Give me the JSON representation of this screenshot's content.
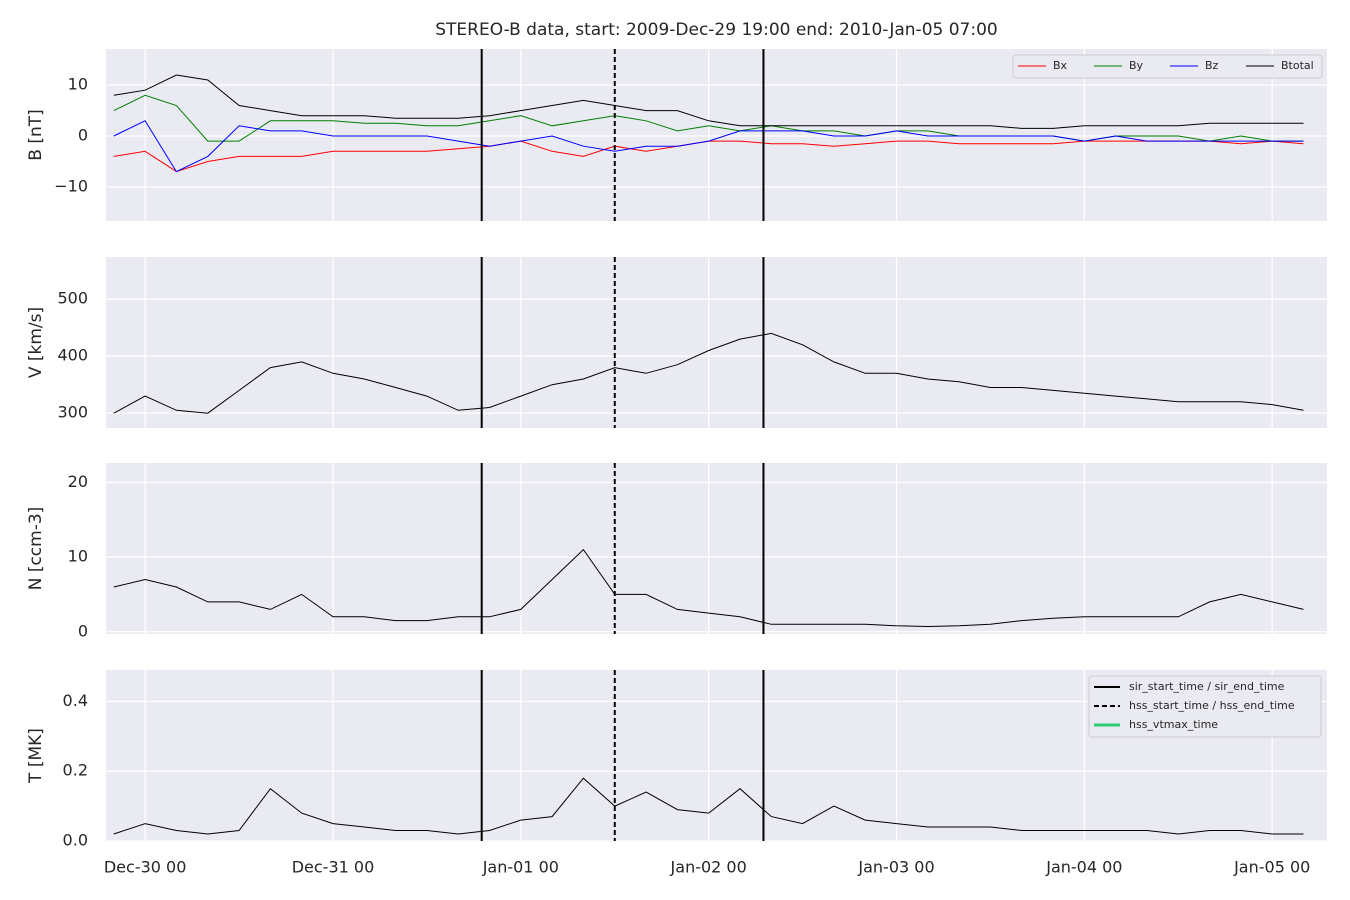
{
  "chart_data": [
    {
      "type": "line",
      "title": "STEREO-B data, start: 2009-Dec-29 19:00  end: 2010-Jan-05 07:00",
      "ylabel": "B [nT]",
      "x": [
        "2009-12-29 20:00",
        "2009-12-30 00:00",
        "2009-12-30 04:00",
        "2009-12-30 08:00",
        "2009-12-30 12:00",
        "2009-12-30 16:00",
        "2009-12-30 20:00",
        "2009-12-31 00:00",
        "2009-12-31 04:00",
        "2009-12-31 08:00",
        "2009-12-31 12:00",
        "2009-12-31 16:00",
        "2009-12-31 20:00",
        "2010-01-01 00:00",
        "2010-01-01 04:00",
        "2010-01-01 08:00",
        "2010-01-01 12:00",
        "2010-01-01 16:00",
        "2010-01-01 20:00",
        "2010-01-02 00:00",
        "2010-01-02 04:00",
        "2010-01-02 08:00",
        "2010-01-02 12:00",
        "2010-01-02 16:00",
        "2010-01-02 20:00",
        "2010-01-03 00:00",
        "2010-01-03 04:00",
        "2010-01-03 08:00",
        "2010-01-03 12:00",
        "2010-01-03 16:00",
        "2010-01-03 20:00",
        "2010-01-04 00:00",
        "2010-01-04 04:00",
        "2010-01-04 08:00",
        "2010-01-04 12:00",
        "2010-01-04 16:00",
        "2010-01-04 20:00",
        "2010-01-05 00:00",
        "2010-01-05 04:00"
      ],
      "series": [
        {
          "name": "Bx",
          "color": "#ff0000",
          "values": [
            -4,
            -3,
            -7,
            -5,
            -4,
            -4,
            -4,
            -3,
            -3,
            -3,
            -3,
            -2.5,
            -2,
            -1,
            -3,
            -4,
            -2,
            -3,
            -2,
            -1,
            -1,
            -1.5,
            -1.5,
            -2,
            -1.5,
            -1,
            -1,
            -1.5,
            -1.5,
            -1.5,
            -1.5,
            -1,
            -1,
            -1,
            -1,
            -1,
            -1.5,
            -1,
            -1.5
          ]
        },
        {
          "name": "By",
          "color": "#008000",
          "values": [
            5,
            8,
            6,
            -1,
            -1,
            3,
            3,
            3,
            2.5,
            2.5,
            2,
            2,
            3,
            4,
            2,
            3,
            4,
            3,
            1,
            2,
            1,
            2,
            1,
            1,
            0,
            1,
            1,
            0,
            0,
            0,
            0,
            -1,
            0,
            0,
            0,
            -1,
            0,
            -1,
            -1
          ]
        },
        {
          "name": "Bz",
          "color": "#0000ff",
          "values": [
            0,
            3,
            -7,
            -4,
            2,
            1,
            1,
            0,
            0,
            0,
            0,
            -1,
            -2,
            -1,
            0,
            -2,
            -3,
            -2,
            -2,
            -1,
            1,
            1,
            1,
            0,
            0,
            1,
            0,
            0,
            0,
            0,
            0,
            -1,
            0,
            -1,
            -1,
            -1,
            -1,
            -1,
            -1
          ]
        },
        {
          "name": "Btotal",
          "color": "#000000",
          "values": [
            8,
            9,
            12,
            11,
            6,
            5,
            4,
            4,
            4,
            3.5,
            3.5,
            3.5,
            4,
            5,
            6,
            7,
            6,
            5,
            5,
            3,
            2,
            2,
            2,
            2,
            2,
            2,
            2,
            2,
            2,
            1.5,
            1.5,
            2,
            2,
            2,
            2,
            2.5,
            2.5,
            2.5,
            2.5
          ]
        }
      ],
      "xlim": [
        "2009-12-29 19:00",
        "2010-01-05 07:00"
      ],
      "xticks": [
        "2009-12-30 00:00",
        "2009-12-31 00:00",
        "2010-01-01 00:00",
        "2010-01-02 00:00",
        "2010-01-03 00:00",
        "2010-01-04 00:00",
        "2010-01-05 00:00"
      ],
      "ylim": [
        -16.7,
        17.1
      ],
      "yticks": [
        {
          "value": -10,
          "label": "−10"
        },
        0,
        10
      ],
      "grid": true,
      "legend": "upper right"
    },
    {
      "type": "line",
      "ylabel": "V [km/s]",
      "x": [
        "2009-12-29 20:00",
        "2009-12-30 00:00",
        "2009-12-30 04:00",
        "2009-12-30 08:00",
        "2009-12-30 12:00",
        "2009-12-30 16:00",
        "2009-12-30 20:00",
        "2009-12-31 00:00",
        "2009-12-31 04:00",
        "2009-12-31 08:00",
        "2009-12-31 12:00",
        "2009-12-31 16:00",
        "2009-12-31 20:00",
        "2010-01-01 00:00",
        "2010-01-01 04:00",
        "2010-01-01 08:00",
        "2010-01-01 12:00",
        "2010-01-01 16:00",
        "2010-01-01 20:00",
        "2010-01-02 00:00",
        "2010-01-02 04:00",
        "2010-01-02 08:00",
        "2010-01-02 12:00",
        "2010-01-02 16:00",
        "2010-01-02 20:00",
        "2010-01-03 00:00",
        "2010-01-03 04:00",
        "2010-01-03 08:00",
        "2010-01-03 12:00",
        "2010-01-03 16:00",
        "2010-01-03 20:00",
        "2010-01-04 00:00",
        "2010-01-04 04:00",
        "2010-01-04 08:00",
        "2010-01-04 12:00",
        "2010-01-04 16:00",
        "2010-01-04 20:00",
        "2010-01-05 00:00",
        "2010-01-05 04:00"
      ],
      "series": [
        {
          "color": "#000000",
          "values": [
            300,
            330,
            305,
            300,
            340,
            380,
            390,
            370,
            360,
            345,
            330,
            305,
            310,
            330,
            350,
            360,
            380,
            370,
            385,
            410,
            430,
            440,
            420,
            390,
            370,
            370,
            360,
            355,
            345,
            345,
            340,
            335,
            330,
            325,
            320,
            320,
            320,
            315,
            305
          ]
        }
      ],
      "xlim": [
        "2009-12-29 19:00",
        "2010-01-05 07:00"
      ],
      "xticks": [
        "2009-12-30 00:00",
        "2009-12-31 00:00",
        "2010-01-01 00:00",
        "2010-01-02 00:00",
        "2010-01-03 00:00",
        "2010-01-04 00:00",
        "2010-01-05 00:00"
      ],
      "ylim": [
        274,
        574
      ],
      "yticks": [
        300,
        400,
        500
      ],
      "grid": true
    },
    {
      "type": "line",
      "ylabel": "N [ccm-3]",
      "x": [
        "2009-12-29 20:00",
        "2009-12-30 00:00",
        "2009-12-30 04:00",
        "2009-12-30 08:00",
        "2009-12-30 12:00",
        "2009-12-30 16:00",
        "2009-12-30 20:00",
        "2009-12-31 00:00",
        "2009-12-31 04:00",
        "2009-12-31 08:00",
        "2009-12-31 12:00",
        "2009-12-31 16:00",
        "2009-12-31 20:00",
        "2010-01-01 00:00",
        "2010-01-01 04:00",
        "2010-01-01 08:00",
        "2010-01-01 12:00",
        "2010-01-01 16:00",
        "2010-01-01 20:00",
        "2010-01-02 00:00",
        "2010-01-02 04:00",
        "2010-01-02 08:00",
        "2010-01-02 12:00",
        "2010-01-02 16:00",
        "2010-01-02 20:00",
        "2010-01-03 00:00",
        "2010-01-03 04:00",
        "2010-01-03 08:00",
        "2010-01-03 12:00",
        "2010-01-03 16:00",
        "2010-01-03 20:00",
        "2010-01-04 00:00",
        "2010-01-04 04:00",
        "2010-01-04 08:00",
        "2010-01-04 12:00",
        "2010-01-04 16:00",
        "2010-01-04 20:00",
        "2010-01-05 00:00",
        "2010-01-05 04:00"
      ],
      "series": [
        {
          "color": "#000000",
          "values": [
            6,
            7,
            6,
            4,
            4,
            3,
            5,
            2,
            2,
            1.5,
            1.5,
            2,
            2,
            3,
            7,
            11,
            5,
            5,
            3,
            2.5,
            2,
            1,
            1,
            1,
            1,
            0.8,
            0.7,
            0.8,
            1,
            1.5,
            1.8,
            2,
            2,
            2,
            2,
            4,
            5,
            4,
            3
          ]
        }
      ],
      "xlim": [
        "2009-12-29 19:00",
        "2010-01-05 07:00"
      ],
      "xticks": [
        "2009-12-30 00:00",
        "2009-12-31 00:00",
        "2010-01-01 00:00",
        "2010-01-02 00:00",
        "2010-01-03 00:00",
        "2010-01-04 00:00",
        "2010-01-05 00:00"
      ],
      "ylim": [
        -0.3,
        22.6
      ],
      "yticks": [
        0,
        10,
        20
      ],
      "grid": true
    },
    {
      "type": "line",
      "ylabel": "T [MK]",
      "x": [
        "2009-12-29 20:00",
        "2009-12-30 00:00",
        "2009-12-30 04:00",
        "2009-12-30 08:00",
        "2009-12-30 12:00",
        "2009-12-30 16:00",
        "2009-12-30 20:00",
        "2009-12-31 00:00",
        "2009-12-31 04:00",
        "2009-12-31 08:00",
        "2009-12-31 12:00",
        "2009-12-31 16:00",
        "2009-12-31 20:00",
        "2010-01-01 00:00",
        "2010-01-01 04:00",
        "2010-01-01 08:00",
        "2010-01-01 12:00",
        "2010-01-01 16:00",
        "2010-01-01 20:00",
        "2010-01-02 00:00",
        "2010-01-02 04:00",
        "2010-01-02 08:00",
        "2010-01-02 12:00",
        "2010-01-02 16:00",
        "2010-01-02 20:00",
        "2010-01-03 00:00",
        "2010-01-03 04:00",
        "2010-01-03 08:00",
        "2010-01-03 12:00",
        "2010-01-03 16:00",
        "2010-01-03 20:00",
        "2010-01-04 00:00",
        "2010-01-04 04:00",
        "2010-01-04 08:00",
        "2010-01-04 12:00",
        "2010-01-04 16:00",
        "2010-01-04 20:00",
        "2010-01-05 00:00",
        "2010-01-05 04:00"
      ],
      "series": [
        {
          "color": "#000000",
          "values": [
            0.02,
            0.05,
            0.03,
            0.02,
            0.03,
            0.15,
            0.08,
            0.05,
            0.04,
            0.03,
            0.03,
            0.02,
            0.03,
            0.06,
            0.07,
            0.18,
            0.1,
            0.14,
            0.09,
            0.08,
            0.15,
            0.07,
            0.05,
            0.1,
            0.06,
            0.05,
            0.04,
            0.04,
            0.04,
            0.03,
            0.03,
            0.03,
            0.03,
            0.03,
            0.02,
            0.03,
            0.03,
            0.02,
            0.02
          ]
        }
      ],
      "xlim": [
        "2009-12-29 19:00",
        "2010-01-05 07:00"
      ],
      "xticks": [
        {
          "value": "2009-12-30 00:00",
          "label": "Dec-30 00"
        },
        {
          "value": "2009-12-31 00:00",
          "label": "Dec-31 00"
        },
        {
          "value": "2010-01-01 00:00",
          "label": "Jan-01 00"
        },
        {
          "value": "2010-01-02 00:00",
          "label": "Jan-02 00"
        },
        {
          "value": "2010-01-03 00:00",
          "label": "Jan-03 00"
        },
        {
          "value": "2010-01-04 00:00",
          "label": "Jan-04 00"
        },
        {
          "value": "2010-01-05 00:00",
          "label": "Jan-05 00"
        }
      ],
      "ylim": [
        0,
        0.49
      ],
      "yticks": [
        {
          "value": 0,
          "label": "0.0"
        },
        {
          "value": 0.2,
          "label": "0.2"
        },
        {
          "value": 0.4,
          "label": "0.4"
        }
      ],
      "grid": true,
      "legend": "upper right",
      "events": [
        {
          "name": "sir_start_time / sir_end_time",
          "color": "#000000",
          "style": "solid",
          "times": [
            "2009-12-31 19:00",
            "2010-01-02 07:00"
          ]
        },
        {
          "name": "hss_start_time / hss_end_time",
          "color": "#000000",
          "style": "dashed",
          "times": [
            "2010-01-01 12:00"
          ]
        },
        {
          "name": "hss_vtmax_time",
          "color": "#2ecc71",
          "style": "solid",
          "times": []
        }
      ]
    }
  ]
}
